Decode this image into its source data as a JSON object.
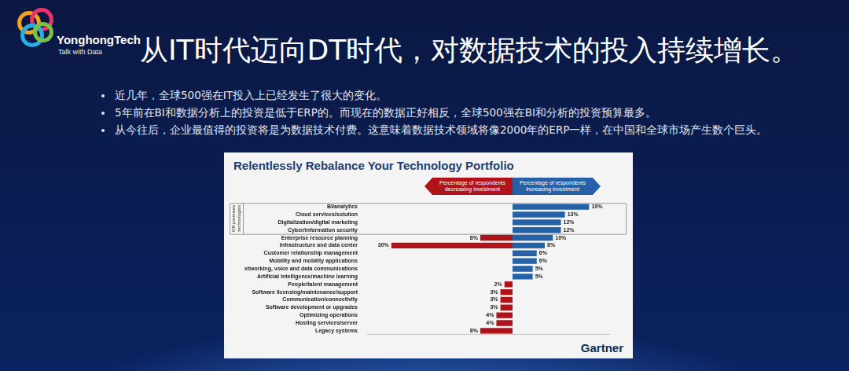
{
  "header": {
    "logo": "YonghongTech",
    "tagline": "Talk with Data",
    "title": "从IT时代迈向DT时代，对数据技术的投入持续增长。"
  },
  "bullets": [
    "近几年，全球500强在IT投入上已经发生了很大的变化。",
    "5年前在BI和数据分析上的投资是低于ERP的。而现在的数据正好相反，全球500强在BI和分析的投资预算最多。",
    "从今往后，企业最值得的投资将是为数据技术付费。这意味着数据技术领域将像2000年的ERP一样，在中国和全球市场产生数个巨头。"
  ],
  "figure": {
    "title": "Relentlessly Rebalance Your Technology Portfolio",
    "source": "Gartner"
  },
  "chart_data": [
    {
      "type": "bar",
      "orientation": "horizontal",
      "subtitle": "Percentage of respondents decreasing investment",
      "categories": [
        "BI/analytics",
        "Cloud services/solution",
        "Digitalization/digital marketing",
        "Cyber/information security",
        "Enterprise resource planning",
        "Infrastructure and data center",
        "Customer relationship management",
        "Mobility and mobility applications",
        "Networking, voice and data communications",
        "Artificial intelligence/machine learning",
        "People/talent management",
        "Software licensing/maintenance/support",
        "Communication/connectivity",
        "Software development or upgrades",
        "Optimizing operations",
        "Hosting services/server",
        "Legacy systems"
      ],
      "values": [
        null,
        null,
        null,
        null,
        8,
        30,
        null,
        null,
        null,
        null,
        2,
        3,
        3,
        3,
        4,
        4,
        8
      ],
      "value_labels": [
        null,
        null,
        null,
        null,
        "8%",
        "30%",
        null,
        null,
        null,
        null,
        "2%",
        "3%",
        "3%",
        "3%",
        "4%",
        "4%",
        "8%"
      ],
      "color": "#b0141a",
      "xlim": [
        36,
        0
      ],
      "grid": false,
      "data_labels": true,
      "tick_labels": "y",
      "annotation": "Off-premises technologies"
    },
    {
      "type": "bar",
      "orientation": "horizontal",
      "subtitle": "Percentage of respondents increasing investment",
      "categories": [
        "BI/analytics",
        "Cloud services/solution",
        "Digitalization/digital marketing",
        "Cyber/information security",
        "Enterprise resource planning",
        "Infrastructure and data center",
        "Customer relationship management",
        "Mobility and mobility applications",
        "Networking, voice and data communications",
        "Artificial intelligence/machine learning",
        "People/talent management",
        "Software licensing/maintenance/support",
        "Communication/connectivity",
        "Software development or upgrades",
        "Optimizing operations",
        "Hosting services/server",
        "Legacy systems"
      ],
      "values": [
        19,
        13,
        12,
        12,
        10,
        8,
        6,
        6,
        5,
        5,
        null,
        null,
        null,
        null,
        null,
        null,
        null
      ],
      "value_labels": [
        "19%",
        "13%",
        "12%",
        "12%",
        "10%",
        "8%",
        "6%",
        "6%",
        "5%",
        "5%",
        null,
        null,
        null,
        null,
        null,
        null,
        null
      ],
      "color": "#2461a8",
      "xlim": [
        0,
        24
      ],
      "grid": false,
      "data_labels": true,
      "tick_labels": false
    }
  ]
}
